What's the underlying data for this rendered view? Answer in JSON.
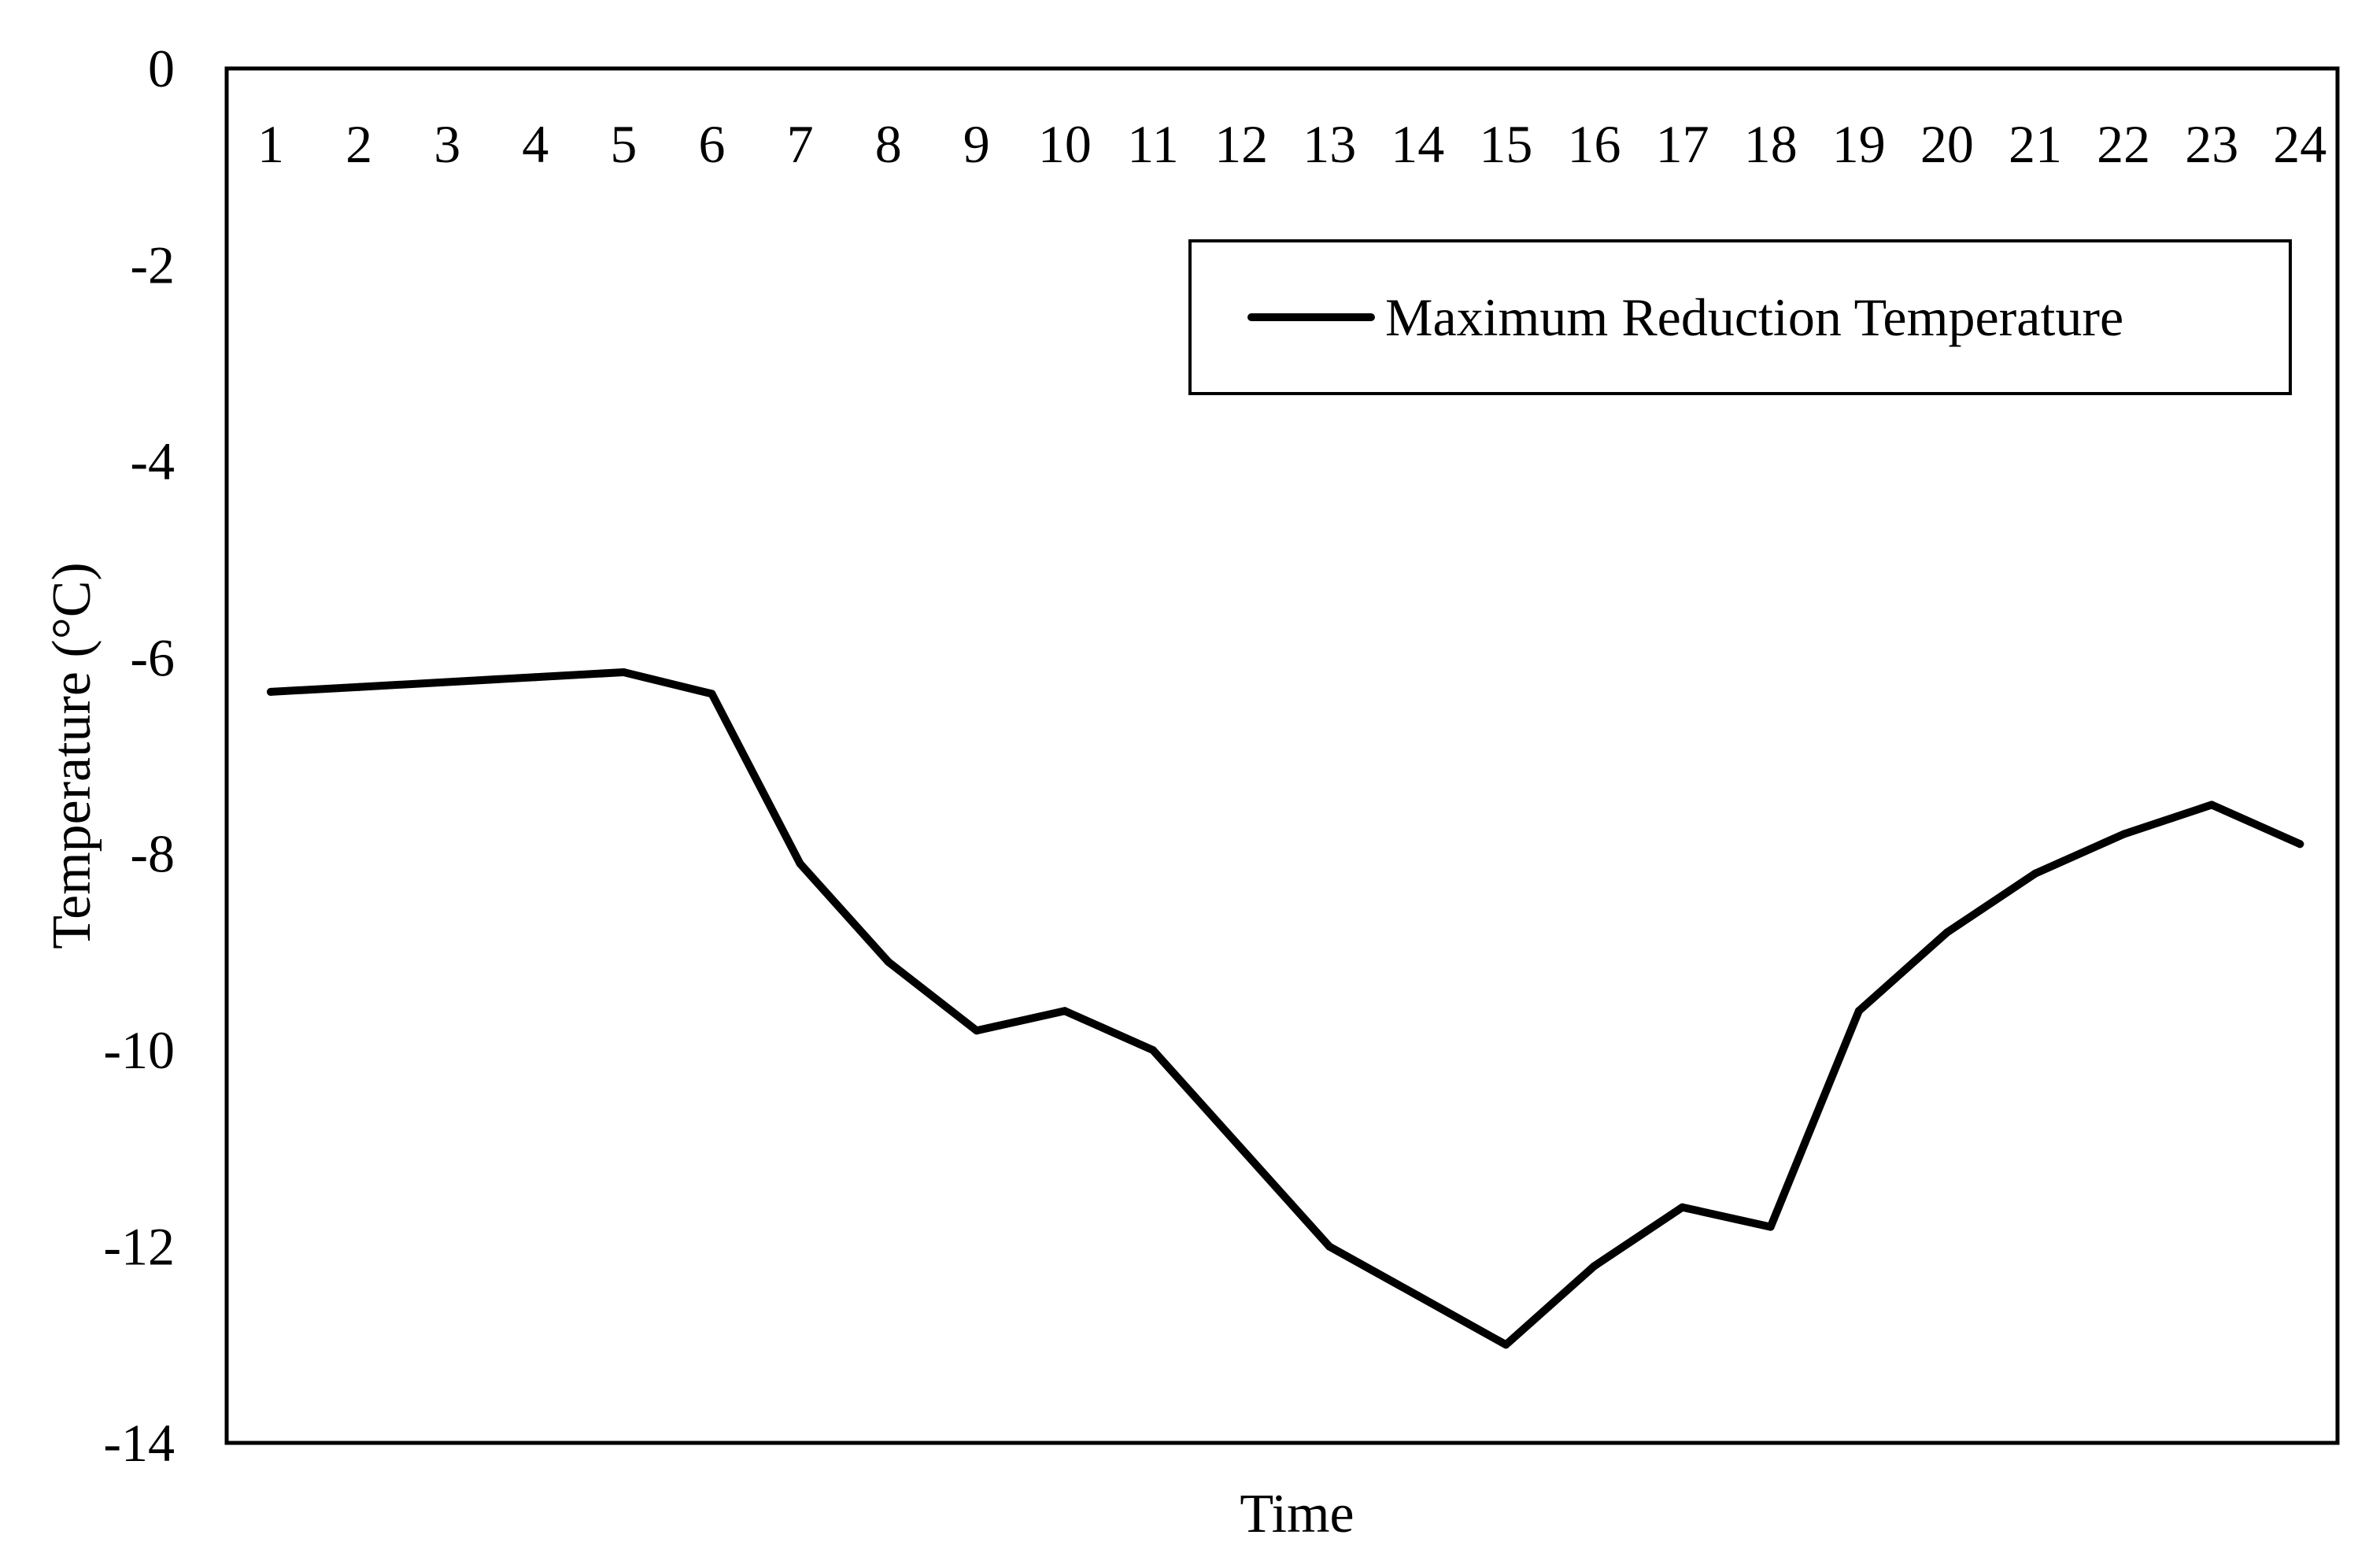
{
  "chart_data": {
    "type": "line",
    "title": "",
    "xlabel": "Time",
    "ylabel": "Temperature (°C)",
    "x": [
      1,
      2,
      3,
      4,
      5,
      6,
      7,
      8,
      9,
      10,
      11,
      12,
      13,
      14,
      15,
      16,
      17,
      18,
      19,
      20,
      21,
      22,
      23,
      24
    ],
    "x_tick_labels": [
      "1",
      "2",
      "3",
      "4",
      "5",
      "6",
      "7",
      "8",
      "9",
      "10",
      "11",
      "12",
      "13",
      "14",
      "15",
      "16",
      "17",
      "18",
      "19",
      "20",
      "21",
      "22",
      "23",
      "24"
    ],
    "x_tick_position": "top",
    "ylim": [
      -14,
      0
    ],
    "y_ticks": [
      0,
      -2,
      -4,
      -6,
      -8,
      -10,
      -12,
      -14
    ],
    "y_tick_labels": [
      "0",
      "-2",
      "-4",
      "-6",
      "-8",
      "-10",
      "-12",
      "-14"
    ],
    "grid": false,
    "legend_position": "top-right",
    "series": [
      {
        "name": "Maximum Reduction Temperature",
        "color": "#000000",
        "values": [
          -6.35,
          -6.3,
          -6.25,
          -6.2,
          -6.15,
          -6.37,
          -8.1,
          -9.1,
          -9.8,
          -9.6,
          -10.0,
          -11.0,
          -12.0,
          -12.5,
          -13.0,
          -12.2,
          -11.6,
          -11.8,
          -9.6,
          -8.8,
          -8.2,
          -7.8,
          -7.5,
          -7.9
        ]
      }
    ]
  }
}
